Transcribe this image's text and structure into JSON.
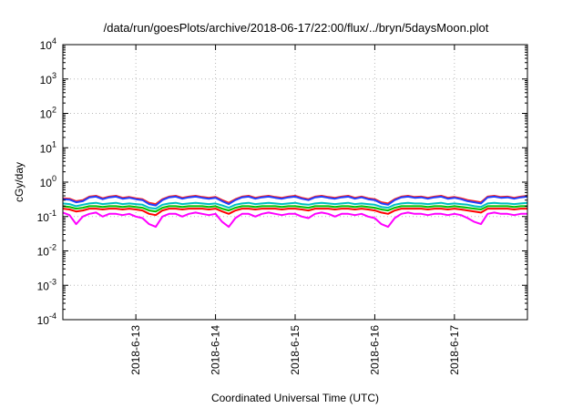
{
  "chart_data": {
    "type": "line",
    "title": "/data/run/goesPlots/archive/2018-06-17/22:00/flux/../bryn/5daysMoon.plot",
    "xlabel": "Coordinated Universal Time (UTC)",
    "ylabel": "cGy/day",
    "y_scale": "log",
    "ylim": [
      0.0001,
      10000
    ],
    "yticks": [
      {
        "base": "10",
        "exp": "-4"
      },
      {
        "base": "10",
        "exp": "-3"
      },
      {
        "base": "10",
        "exp": "-2"
      },
      {
        "base": "10",
        "exp": "-1"
      },
      {
        "base": "10",
        "exp": "0"
      },
      {
        "base": "10",
        "exp": "1"
      },
      {
        "base": "10",
        "exp": "2"
      },
      {
        "base": "10",
        "exp": "3"
      },
      {
        "base": "10",
        "exp": "4"
      }
    ],
    "xlim": [
      "2018-06-12 02:00",
      "2018-06-17 22:00"
    ],
    "xticks": [
      {
        "label": "2018-6-13",
        "t": "2018-06-13 00:00"
      },
      {
        "label": "2018-6-14",
        "t": "2018-06-14 00:00"
      },
      {
        "label": "2018-6-15",
        "t": "2018-06-15 00:00"
      },
      {
        "label": "2018-6-16",
        "t": "2018-06-16 00:00"
      },
      {
        "label": "2018-6-17",
        "t": "2018-06-17 00:00"
      }
    ],
    "grid": true,
    "series_x": [
      "2018-06-12 02:00",
      "2018-06-12 04:00",
      "2018-06-12 06:00",
      "2018-06-12 08:00",
      "2018-06-12 10:00",
      "2018-06-12 12:00",
      "2018-06-12 14:00",
      "2018-06-12 16:00",
      "2018-06-12 18:00",
      "2018-06-12 20:00",
      "2018-06-12 22:00",
      "2018-06-13 00:00",
      "2018-06-13 02:00",
      "2018-06-13 04:00",
      "2018-06-13 06:00",
      "2018-06-13 08:00",
      "2018-06-13 10:00",
      "2018-06-13 12:00",
      "2018-06-13 14:00",
      "2018-06-13 16:00",
      "2018-06-13 18:00",
      "2018-06-13 20:00",
      "2018-06-13 22:00",
      "2018-06-14 00:00",
      "2018-06-14 02:00",
      "2018-06-14 04:00",
      "2018-06-14 06:00",
      "2018-06-14 08:00",
      "2018-06-14 10:00",
      "2018-06-14 12:00",
      "2018-06-14 14:00",
      "2018-06-14 16:00",
      "2018-06-14 18:00",
      "2018-06-14 20:00",
      "2018-06-14 22:00",
      "2018-06-15 00:00",
      "2018-06-15 02:00",
      "2018-06-15 04:00",
      "2018-06-15 06:00",
      "2018-06-15 08:00",
      "2018-06-15 10:00",
      "2018-06-15 12:00",
      "2018-06-15 14:00",
      "2018-06-15 16:00",
      "2018-06-15 18:00",
      "2018-06-15 20:00",
      "2018-06-15 22:00",
      "2018-06-16 00:00",
      "2018-06-16 02:00",
      "2018-06-16 04:00",
      "2018-06-16 06:00",
      "2018-06-16 08:00",
      "2018-06-16 10:00",
      "2018-06-16 12:00",
      "2018-06-16 14:00",
      "2018-06-16 16:00",
      "2018-06-16 18:00",
      "2018-06-16 20:00",
      "2018-06-16 22:00",
      "2018-06-17 00:00",
      "2018-06-17 02:00",
      "2018-06-17 04:00",
      "2018-06-17 06:00",
      "2018-06-17 08:00",
      "2018-06-17 10:00",
      "2018-06-17 12:00",
      "2018-06-17 14:00",
      "2018-06-17 16:00",
      "2018-06-17 18:00",
      "2018-06-17 20:00",
      "2018-06-17 22:00"
    ],
    "series": [
      {
        "color": "#ff00ff",
        "values": [
          0.13,
          0.11,
          0.06,
          0.1,
          0.12,
          0.13,
          0.1,
          0.12,
          0.12,
          0.11,
          0.12,
          0.1,
          0.09,
          0.06,
          0.05,
          0.1,
          0.12,
          0.12,
          0.1,
          0.12,
          0.13,
          0.12,
          0.11,
          0.12,
          0.07,
          0.05,
          0.09,
          0.12,
          0.12,
          0.1,
          0.12,
          0.13,
          0.12,
          0.11,
          0.12,
          0.12,
          0.1,
          0.09,
          0.12,
          0.13,
          0.12,
          0.1,
          0.12,
          0.12,
          0.11,
          0.12,
          0.1,
          0.09,
          0.06,
          0.05,
          0.09,
          0.12,
          0.13,
          0.12,
          0.12,
          0.11,
          0.12,
          0.12,
          0.11,
          0.12,
          0.11,
          0.09,
          0.07,
          0.06,
          0.12,
          0.13,
          0.12,
          0.12,
          0.11,
          0.12,
          0.12
        ]
      },
      {
        "color": "#ff0000",
        "values": [
          0.17,
          0.16,
          0.14,
          0.15,
          0.17,
          0.17,
          0.16,
          0.17,
          0.17,
          0.16,
          0.17,
          0.16,
          0.15,
          0.12,
          0.11,
          0.15,
          0.17,
          0.17,
          0.16,
          0.17,
          0.17,
          0.17,
          0.16,
          0.17,
          0.14,
          0.12,
          0.15,
          0.17,
          0.17,
          0.16,
          0.17,
          0.17,
          0.17,
          0.16,
          0.17,
          0.17,
          0.16,
          0.15,
          0.17,
          0.17,
          0.17,
          0.16,
          0.17,
          0.17,
          0.16,
          0.17,
          0.16,
          0.15,
          0.13,
          0.12,
          0.15,
          0.17,
          0.17,
          0.17,
          0.17,
          0.16,
          0.17,
          0.17,
          0.16,
          0.17,
          0.16,
          0.15,
          0.14,
          0.13,
          0.17,
          0.17,
          0.17,
          0.17,
          0.16,
          0.17,
          0.17
        ]
      },
      {
        "color": "#00c000",
        "values": [
          0.2,
          0.19,
          0.17,
          0.18,
          0.2,
          0.2,
          0.19,
          0.2,
          0.2,
          0.19,
          0.2,
          0.19,
          0.18,
          0.15,
          0.14,
          0.18,
          0.2,
          0.2,
          0.19,
          0.2,
          0.2,
          0.2,
          0.19,
          0.2,
          0.17,
          0.15,
          0.18,
          0.2,
          0.2,
          0.19,
          0.2,
          0.2,
          0.2,
          0.19,
          0.2,
          0.2,
          0.19,
          0.18,
          0.2,
          0.2,
          0.2,
          0.19,
          0.2,
          0.2,
          0.19,
          0.2,
          0.19,
          0.18,
          0.16,
          0.15,
          0.18,
          0.2,
          0.2,
          0.2,
          0.2,
          0.19,
          0.2,
          0.2,
          0.19,
          0.2,
          0.19,
          0.18,
          0.17,
          0.16,
          0.2,
          0.2,
          0.2,
          0.2,
          0.19,
          0.2,
          0.2
        ]
      },
      {
        "color": "#00c0c0",
        "values": [
          0.24,
          0.23,
          0.2,
          0.22,
          0.24,
          0.25,
          0.23,
          0.24,
          0.25,
          0.23,
          0.24,
          0.23,
          0.22,
          0.18,
          0.17,
          0.22,
          0.24,
          0.25,
          0.23,
          0.24,
          0.25,
          0.24,
          0.23,
          0.24,
          0.21,
          0.18,
          0.22,
          0.24,
          0.25,
          0.23,
          0.24,
          0.25,
          0.24,
          0.23,
          0.24,
          0.25,
          0.23,
          0.22,
          0.24,
          0.25,
          0.24,
          0.23,
          0.24,
          0.25,
          0.23,
          0.24,
          0.23,
          0.22,
          0.19,
          0.18,
          0.22,
          0.24,
          0.25,
          0.24,
          0.24,
          0.23,
          0.24,
          0.25,
          0.23,
          0.24,
          0.23,
          0.22,
          0.2,
          0.19,
          0.24,
          0.25,
          0.24,
          0.24,
          0.23,
          0.24,
          0.25
        ]
      },
      {
        "color": "#ff2020",
        "values": [
          0.34,
          0.33,
          0.28,
          0.3,
          0.38,
          0.4,
          0.34,
          0.38,
          0.4,
          0.35,
          0.37,
          0.34,
          0.32,
          0.25,
          0.23,
          0.32,
          0.38,
          0.4,
          0.35,
          0.38,
          0.4,
          0.37,
          0.35,
          0.37,
          0.3,
          0.25,
          0.32,
          0.38,
          0.4,
          0.35,
          0.38,
          0.4,
          0.37,
          0.35,
          0.38,
          0.4,
          0.35,
          0.32,
          0.38,
          0.4,
          0.37,
          0.35,
          0.38,
          0.4,
          0.35,
          0.38,
          0.34,
          0.32,
          0.26,
          0.24,
          0.32,
          0.38,
          0.4,
          0.37,
          0.38,
          0.35,
          0.38,
          0.4,
          0.35,
          0.37,
          0.34,
          0.3,
          0.28,
          0.26,
          0.38,
          0.4,
          0.37,
          0.38,
          0.35,
          0.38,
          0.4
        ]
      },
      {
        "color": "#2040ff",
        "values": [
          0.32,
          0.31,
          0.26,
          0.28,
          0.36,
          0.38,
          0.32,
          0.36,
          0.38,
          0.33,
          0.35,
          0.32,
          0.3,
          0.23,
          0.21,
          0.3,
          0.36,
          0.38,
          0.33,
          0.36,
          0.38,
          0.35,
          0.33,
          0.35,
          0.28,
          0.23,
          0.3,
          0.36,
          0.38,
          0.33,
          0.36,
          0.38,
          0.35,
          0.33,
          0.36,
          0.38,
          0.33,
          0.3,
          0.36,
          0.38,
          0.35,
          0.33,
          0.36,
          0.38,
          0.33,
          0.36,
          0.32,
          0.3,
          0.24,
          0.22,
          0.3,
          0.36,
          0.38,
          0.35,
          0.36,
          0.33,
          0.36,
          0.38,
          0.33,
          0.35,
          0.32,
          0.28,
          0.26,
          0.24,
          0.36,
          0.38,
          0.35,
          0.36,
          0.33,
          0.36,
          0.38
        ]
      }
    ]
  }
}
